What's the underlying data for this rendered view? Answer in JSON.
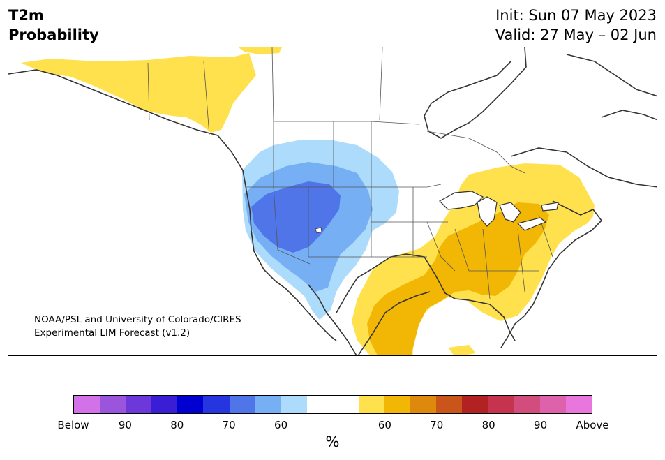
{
  "header": {
    "title_line1": "T2m",
    "title_line2": "Probability",
    "init_line": "Init: Sun 07 May 2023",
    "valid_line": "Valid: 27 May – 02 Jun"
  },
  "credit": {
    "line1": "NOAA/PSL and University of Colorado/CIRES",
    "line2": "Experimental LIM Forecast (v1.2)"
  },
  "colorbar": {
    "colors": [
      "#d371e8",
      "#9b55dd",
      "#6d38d9",
      "#3a1ed5",
      "#0000d0",
      "#2536e0",
      "#4f75e8",
      "#76aff3",
      "#acdbfb",
      "#ffffff",
      "#ffffff",
      "#ffe14d",
      "#f2b705",
      "#de890b",
      "#c9551b",
      "#b32222",
      "#c5334e",
      "#d24d7e",
      "#dd61ab",
      "#e876dd"
    ],
    "tick_labels": [
      "Below",
      "90",
      "80",
      "70",
      "60",
      "60",
      "70",
      "80",
      "90",
      "Above"
    ],
    "unit": "%"
  },
  "map_colors": {
    "above_light": "#ffe14d",
    "above_mid": "#f2b705",
    "below_light": "#acdbfb",
    "below_mid": "#76aff3",
    "below_strong": "#4f75e8",
    "coast": "#333333"
  }
}
